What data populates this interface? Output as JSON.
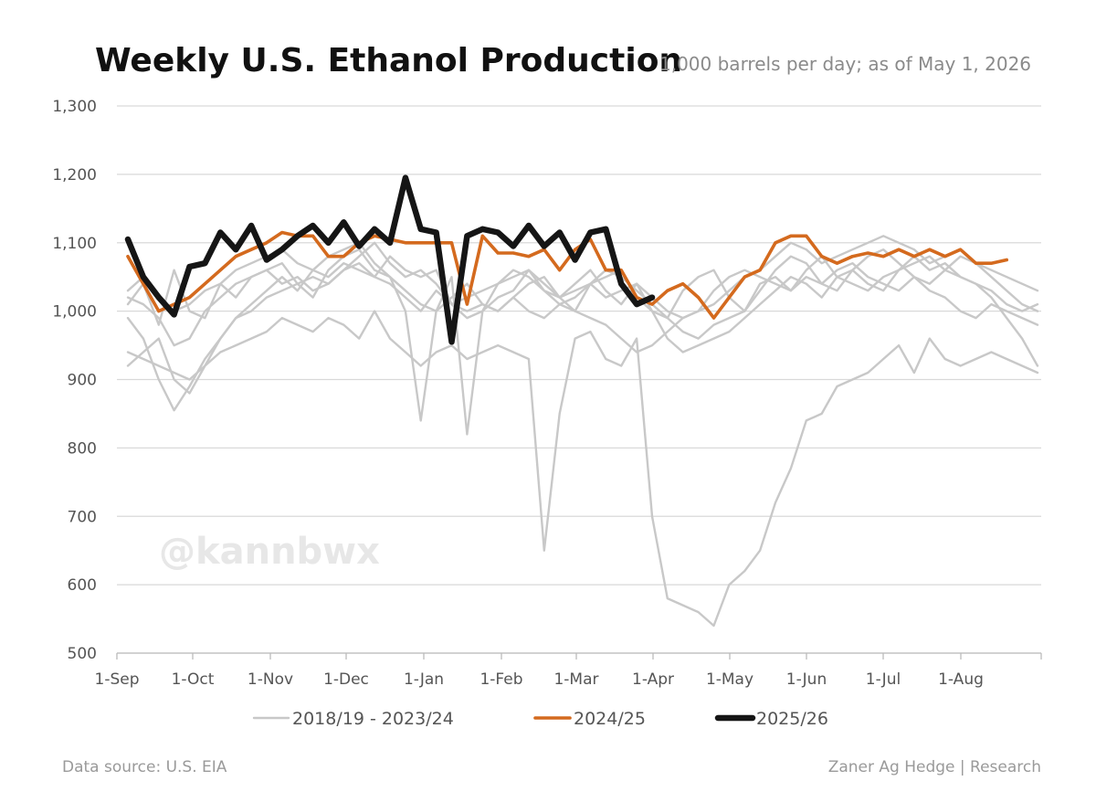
{
  "chart_data": {
    "type": "line",
    "title": "Weekly U.S. Ethanol Production",
    "subtitle": "1,000 barrels per day; as of May 1, 2026",
    "ylim": [
      500,
      1300
    ],
    "y_ticks": [
      "500",
      "600",
      "700",
      "800",
      "900",
      "1,000",
      "1,100",
      "1,200",
      "1,300"
    ],
    "x_ticks": [
      "1-Sep",
      "1-Oct",
      "1-Nov",
      "1-Dec",
      "1-Jan",
      "1-Feb",
      "1-Mar",
      "1-Apr",
      "1-May",
      "1-Jun",
      "1-Jul",
      "1-Aug"
    ],
    "x_unit": "week of marketing year (Sep–Aug), week 0 = 1-Sep",
    "grid": true,
    "legend_position": "bottom",
    "colors": {
      "historical": "#c8c8c8",
      "y2024": "#d46a1e",
      "y2025": "#151515",
      "grid": "#d9d9d9"
    },
    "series": [
      {
        "name": "2018/19 - 2023/24",
        "group": "historical",
        "values": [
          1010,
          1040,
          980,
          1060,
          1000,
          990,
          1040,
          1020,
          1050,
          1060,
          1040,
          1050,
          1030,
          1040,
          1060,
          1080,
          1100,
          1070,
          1050,
          1060,
          1040,
          1010,
          990,
          1000,
          1040,
          1050,
          1060,
          1030,
          1020,
          1040,
          1060,
          1030,
          1010,
          1040,
          1000,
          990,
          1030,
          1050,
          1060,
          1020,
          1000,
          1040,
          1050,
          1030,
          1060,
          1080,
          1050,
          1040,
          1030,
          1050,
          1060,
          1080,
          1060,
          1070,
          1050,
          1040,
          1030,
          1010,
          1000,
          1010
        ]
      },
      {
        "name": "2018/19 - 2023/24",
        "group": "historical",
        "values": [
          990,
          960,
          900,
          855,
          890,
          930,
          960,
          990,
          1010,
          1030,
          1050,
          1030,
          1060,
          1050,
          1070,
          1060,
          1050,
          1040,
          1020,
          1000,
          1030,
          1010,
          1000,
          1010,
          1000,
          1020,
          1000,
          990,
          1010,
          1000,
          990,
          980,
          960,
          940,
          950,
          970,
          990,
          1000,
          1030,
          1050,
          1060,
          1050,
          1040,
          1030,
          1050,
          1040,
          1060,
          1070,
          1050,
          1040,
          1030,
          1050,
          1030,
          1020,
          1000,
          990,
          1010,
          1000,
          990,
          980
        ]
      },
      {
        "name": "2018/19 - 2023/24",
        "group": "historical",
        "values": [
          920,
          940,
          960,
          900,
          880,
          920,
          960,
          990,
          1000,
          1020,
          1030,
          1040,
          1050,
          1040,
          1060,
          1070,
          1050,
          1080,
          1060,
          1050,
          1060,
          1010,
          1020,
          1030,
          1040,
          1060,
          1050,
          1030,
          1010,
          1020,
          1040,
          1050,
          1060,
          1020,
          1000,
          960,
          940,
          950,
          960,
          970,
          990,
          1010,
          1030,
          1050,
          1040,
          1020,
          1050,
          1060,
          1040,
          1030,
          1060,
          1070,
          1080,
          1060,
          1050,
          1040,
          1020,
          990,
          960,
          920
        ]
      },
      {
        "name": "2018/19 - 2023/24",
        "group": "historical",
        "values": [
          1020,
          1010,
          990,
          950,
          960,
          1000,
          1020,
          1040,
          1050,
          1060,
          1070,
          1040,
          1020,
          1060,
          1080,
          1090,
          1060,
          1050,
          1030,
          1010,
          1000,
          1020,
          1040,
          1010,
          1000,
          1020,
          1040,
          1050,
          1020,
          1000,
          1040,
          1060,
          1050,
          1030,
          1010,
          990,
          970,
          960,
          980,
          990,
          1000,
          1030,
          1060,
          1080,
          1070,
          1040,
          1030,
          1060,
          1080,
          1090,
          1070,
          1050,
          1040,
          1060,
          1080,
          1070,
          1050,
          1030,
          1010,
          1000
        ]
      },
      {
        "name": "2018/19 - 2023/24",
        "group": "historical",
        "values": [
          940,
          930,
          920,
          910,
          900,
          920,
          940,
          950,
          960,
          970,
          990,
          980,
          970,
          990,
          980,
          960,
          1000,
          960,
          940,
          920,
          940,
          950,
          930,
          940,
          950,
          940,
          930,
          650,
          850,
          960,
          970,
          930,
          920,
          960,
          700,
          580,
          570,
          560,
          540,
          600,
          620,
          650,
          720,
          770,
          840,
          850,
          890,
          900,
          910,
          930,
          950,
          910,
          960,
          930,
          920,
          930,
          940,
          930,
          920,
          910
        ]
      },
      {
        "name": "2018/19 - 2023/24",
        "group": "historical",
        "values": [
          1030,
          1050,
          1020,
          1000,
          1010,
          1030,
          1040,
          1060,
          1070,
          1080,
          1090,
          1070,
          1060,
          1080,
          1090,
          1100,
          1070,
          1050,
          1000,
          840,
          1000,
          1050,
          820,
          1000,
          1020,
          1030,
          1060,
          1040,
          1020,
          1030,
          1040,
          1020,
          1030,
          1040,
          1020,
          1000,
          990,
          1000,
          1010,
          1030,
          1050,
          1060,
          1080,
          1100,
          1090,
          1070,
          1080,
          1090,
          1100,
          1110,
          1100,
          1090,
          1070,
          1080,
          1090,
          1070,
          1060,
          1050,
          1040,
          1030
        ]
      },
      {
        "name": "2024/25",
        "group": "y2024",
        "values": [
          1080,
          1040,
          1000,
          1010,
          1020,
          1040,
          1060,
          1080,
          1090,
          1100,
          1115,
          1110,
          1110,
          1080,
          1080,
          1100,
          1110,
          1105,
          1100,
          1100,
          1100,
          1100,
          1010,
          1110,
          1085,
          1085,
          1080,
          1090,
          1060,
          1090,
          1105,
          1060,
          1060,
          1020,
          1010,
          1030,
          1040,
          1020,
          990,
          1020,
          1050,
          1060,
          1100,
          1110,
          1110,
          1080,
          1070,
          1080,
          1085,
          1080,
          1090,
          1080,
          1090,
          1080,
          1090,
          1070,
          1070,
          1075
        ]
      },
      {
        "name": "2025/26",
        "group": "y2025",
        "values": [
          1105,
          1050,
          1020,
          995,
          1065,
          1070,
          1115,
          1090,
          1125,
          1075,
          1090,
          1110,
          1125,
          1100,
          1130,
          1095,
          1120,
          1100,
          1195,
          1120,
          1115,
          955,
          1110,
          1120,
          1115,
          1095,
          1125,
          1095,
          1115,
          1075,
          1115,
          1120,
          1040,
          1010,
          1020
        ]
      }
    ]
  },
  "legend": [
    {
      "label": "2018/19 - 2023/24",
      "color": "#c8c8c8"
    },
    {
      "label": "2024/25",
      "color": "#d46a1e"
    },
    {
      "label": "2025/26",
      "color": "#151515"
    }
  ],
  "watermark": "@kannbwx",
  "footer": {
    "source": "Data source: U.S. EIA",
    "credit": "Zaner Ag Hedge | Research"
  }
}
